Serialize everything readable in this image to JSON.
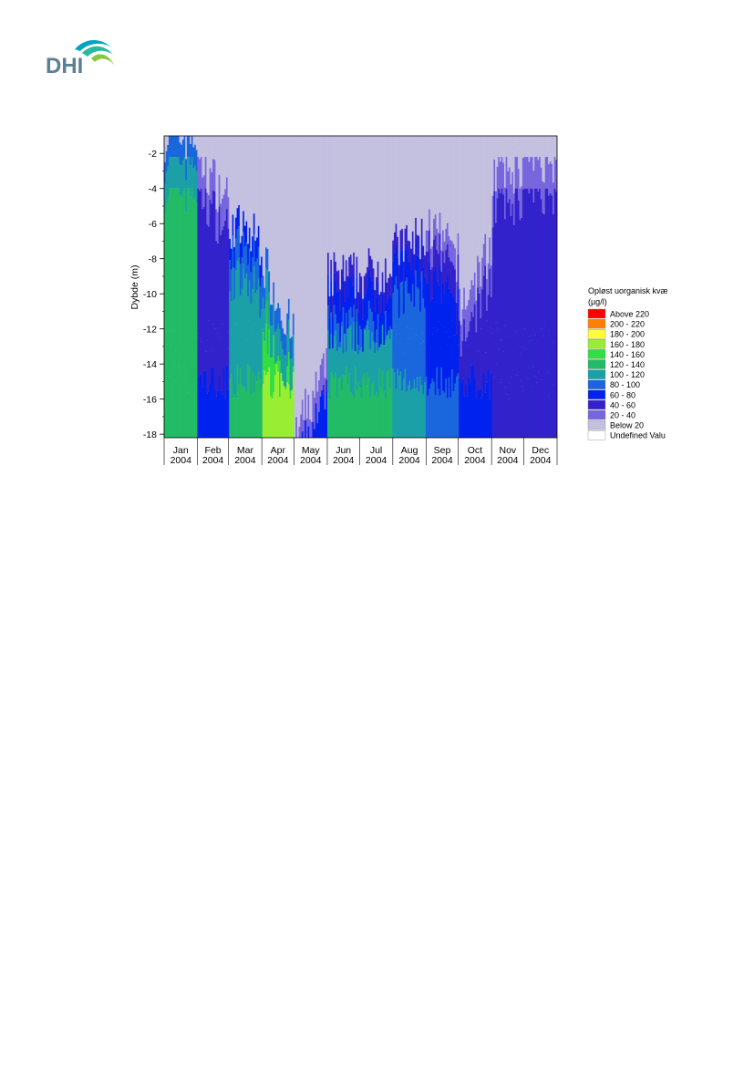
{
  "logo": {
    "text": "DHI"
  },
  "chart_data": {
    "type": "heatmap",
    "title": "",
    "xlabel": "",
    "ylabel": "Dybde (m)",
    "x_range": [
      "2004-01-01",
      "2005-01-01"
    ],
    "ylim": [
      -18.2,
      -1.0
    ],
    "y_ticks": [
      -2,
      -4,
      -6,
      -8,
      -10,
      -12,
      -14,
      -16,
      -18
    ],
    "x_ticks": [
      {
        "month": "Jan",
        "year": "2004"
      },
      {
        "month": "Feb",
        "year": "2004"
      },
      {
        "month": "Mar",
        "year": "2004"
      },
      {
        "month": "Apr",
        "year": "2004"
      },
      {
        "month": "May",
        "year": "2004"
      },
      {
        "month": "Jun",
        "year": "2004"
      },
      {
        "month": "Jul",
        "year": "2004"
      },
      {
        "month": "Aug",
        "year": "2004"
      },
      {
        "month": "Sep",
        "year": "2004"
      },
      {
        "month": "Oct",
        "year": "2004"
      },
      {
        "month": "Nov",
        "year": "2004"
      },
      {
        "month": "Dec",
        "year": "2004"
      }
    ],
    "legend": {
      "title_line1": "Opløst uorganisk kvæ",
      "title_line2": "(µg/l)",
      "placement": "right",
      "items": [
        {
          "label": "Above 220",
          "color": "#ff0000"
        },
        {
          "label": "200 - 220",
          "color": "#ff8000"
        },
        {
          "label": "180 - 200",
          "color": "#ffff33"
        },
        {
          "label": "160 - 180",
          "color": "#99ee33"
        },
        {
          "label": "140 - 160",
          "color": "#33dd44"
        },
        {
          "label": "120 - 140",
          "color": "#22bb66"
        },
        {
          "label": "100 - 120",
          "color": "#1aa0a6"
        },
        {
          "label": "80 - 100",
          "color": "#1a66dd"
        },
        {
          "label": "60 - 80",
          "color": "#0022ee"
        },
        {
          "label": "40 - 60",
          "color": "#3322cc"
        },
        {
          "label": "20 - 40",
          "color": "#7766dd"
        },
        {
          "label": "Below 20",
          "color": "#c3c0e0"
        },
        {
          "label": "Undefined Valu",
          "color": "#ffffff"
        }
      ]
    },
    "profile_description_by_month": [
      {
        "month": "Jan",
        "surface_low_depth": -1.0,
        "bottom_class": "120 - 140",
        "mid_class": "120 - 140"
      },
      {
        "month": "Feb",
        "surface_low_depth": -1.0,
        "bottom_class": "60 - 80",
        "mid_class": "40 - 60"
      },
      {
        "month": "Mar",
        "surface_low_depth": -6.0,
        "bottom_class": "120 - 140",
        "mid_class": "100 - 120"
      },
      {
        "month": "Apr",
        "surface_low_depth": -8.0,
        "bottom_class": "160 - 180",
        "mid_class": "120 - 140"
      },
      {
        "month": "May",
        "surface_low_depth": -17.0,
        "bottom_class": "60 - 80",
        "mid_class": "40 - 60"
      },
      {
        "month": "Jun",
        "surface_low_depth": -9.0,
        "bottom_class": "120 - 140",
        "mid_class": "80 - 100"
      },
      {
        "month": "Jul",
        "surface_low_depth": -9.0,
        "bottom_class": "120 - 140",
        "mid_class": "80 - 100"
      },
      {
        "month": "Aug",
        "surface_low_depth": -7.5,
        "bottom_class": "100 - 120",
        "mid_class": "80 - 100"
      },
      {
        "month": "Sep",
        "surface_low_depth": -6.0,
        "bottom_class": "80 - 100",
        "mid_class": "60 - 80"
      },
      {
        "month": "Oct",
        "surface_low_depth": -10.0,
        "bottom_class": "60 - 80",
        "mid_class": "40 - 60"
      },
      {
        "month": "Nov",
        "surface_low_depth": -2.0,
        "bottom_class": "40 - 60",
        "mid_class": "40 - 60"
      },
      {
        "month": "Dec",
        "surface_low_depth": -1.0,
        "bottom_class": "40 - 60",
        "mid_class": "40 - 60"
      }
    ]
  }
}
